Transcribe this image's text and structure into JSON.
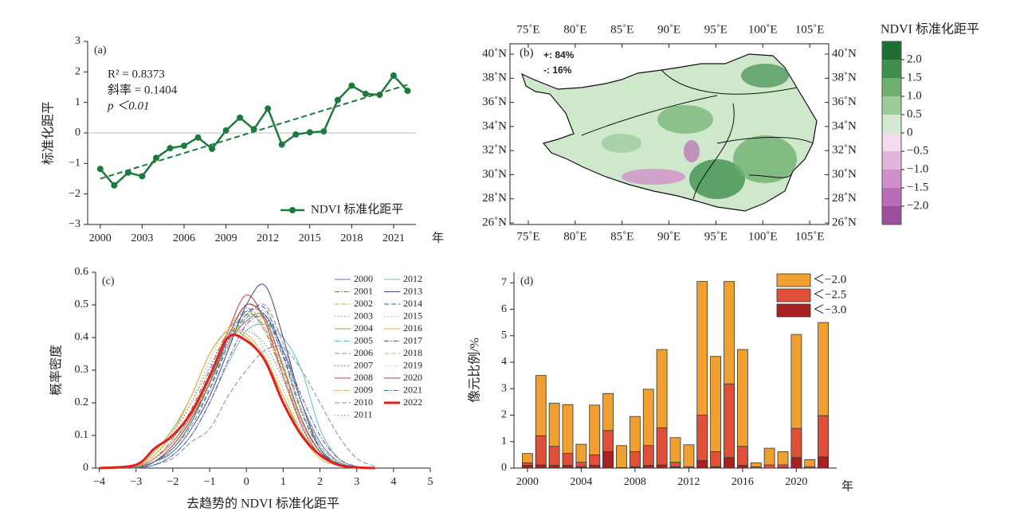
{
  "chart_data": [
    {
      "type": "line",
      "label": "(a)",
      "x": [
        2000,
        2001,
        2002,
        2003,
        2004,
        2005,
        2006,
        2007,
        2008,
        2009,
        2010,
        2011,
        2012,
        2013,
        2014,
        2015,
        2016,
        2017,
        2018,
        2019,
        2020,
        2021,
        2022
      ],
      "series": [
        {
          "name": "NDVI 标准化距平",
          "color": "#1e7a3c",
          "values": [
            -1.18,
            -1.72,
            -1.3,
            -1.42,
            -0.82,
            -0.5,
            -0.42,
            -0.15,
            -0.52,
            0.08,
            0.5,
            0.12,
            0.8,
            -0.38,
            -0.05,
            0.02,
            0.05,
            1.08,
            1.55,
            1.28,
            1.25,
            1.88,
            1.38
          ]
        }
      ],
      "trend": {
        "x": [
          2000,
          2022
        ],
        "values": [
          -1.5,
          1.58
        ]
      },
      "annotations": [
        "R² = 0.8373",
        "斜率 = 0.1404",
        "p ＜0.01"
      ],
      "xlim": [
        1999.1,
        2022.6
      ],
      "xticks": [
        2000,
        2003,
        2006,
        2009,
        2012,
        2015,
        2018,
        2021
      ],
      "ylim": [
        -3,
        3
      ],
      "yticks": [
        {
          "value": -3,
          "label": "−3"
        },
        {
          "value": -2,
          "label": "−2"
        },
        {
          "value": -1,
          "label": "−1"
        },
        0,
        1,
        2,
        3
      ],
      "xlabel": "年",
      "ylabel": "标准化距平",
      "legend": "lower right"
    },
    {
      "type": "map",
      "label": "(b)",
      "lonlim": [
        73.05,
        107.03
      ],
      "latlim": [
        25.87,
        40.86
      ],
      "lonticks": [
        {
          "value": 75,
          "label": "75˚E"
        },
        {
          "value": 80,
          "label": "80˚E"
        },
        {
          "value": 85,
          "label": "85˚E"
        },
        {
          "value": 90,
          "label": "90˚E"
        },
        {
          "value": 95,
          "label": "95˚E"
        },
        {
          "value": 100,
          "label": "100˚E"
        },
        {
          "value": 105,
          "label": "105˚E"
        }
      ],
      "latticks": [
        {
          "value": 40,
          "label": "40˚N"
        },
        {
          "value": 38,
          "label": "38˚N"
        },
        {
          "value": 36,
          "label": "36˚N"
        },
        {
          "value": 34,
          "label": "34˚N"
        },
        {
          "value": 32,
          "label": "32˚N"
        },
        {
          "value": 30,
          "label": "30˚N"
        },
        {
          "value": 28,
          "label": "28˚N"
        },
        {
          "value": 26,
          "label": "26˚N"
        }
      ],
      "annotations": [
        {
          "text": "+: 84%",
          "color": "#1f6e35"
        },
        {
          "text": "-: 16%",
          "color": "#b050b0"
        }
      ],
      "colorbar": {
        "title": "NDVI 标准化距平",
        "lim": [
          -2.5,
          2.5
        ],
        "colors": [
          "#1f6e35",
          "#3f8f4f",
          "#6fb071",
          "#9fcb9d",
          "#d3ead0",
          "#f2dcee",
          "#e2b6dc",
          "#cf90c9",
          "#b86db6",
          "#9c4f9c"
        ],
        "ticks": [
          {
            "value": 2,
            "label": "2.0"
          },
          {
            "value": 1.5,
            "label": "1.5"
          },
          {
            "value": 1,
            "label": "1.0"
          },
          {
            "value": 0.5,
            "label": "0.5"
          },
          0,
          {
            "value": -0.5,
            "label": "−0.5"
          },
          {
            "value": -1,
            "label": "−1.0"
          },
          {
            "value": -1.5,
            "label": "−1.5"
          },
          {
            "value": -2,
            "label": "−2.0"
          }
        ]
      }
    },
    {
      "type": "density",
      "label": "(c)",
      "x": [
        -4,
        -3,
        -2.5,
        -2,
        -1.5,
        -1,
        -0.5,
        0,
        0.5,
        1,
        1.5,
        2,
        2.5,
        3,
        3.5
      ],
      "series": [
        {
          "name": "2000",
          "color": "#4a7fc1",
          "style": "solid",
          "values": [
            0,
            0.002,
            0.02,
            0.06,
            0.14,
            0.26,
            0.38,
            0.45,
            0.47,
            0.36,
            0.2,
            0.08,
            0.02,
            0.004,
            0
          ]
        },
        {
          "name": "2001",
          "color": "#8a6d3b",
          "style": "dashdot",
          "values": [
            0,
            0.003,
            0.03,
            0.09,
            0.18,
            0.3,
            0.42,
            0.48,
            0.42,
            0.28,
            0.14,
            0.05,
            0.015,
            0.003,
            0
          ]
        },
        {
          "name": "2002",
          "color": "#e0a040",
          "style": "dashed",
          "values": [
            0,
            0.002,
            0.02,
            0.07,
            0.15,
            0.27,
            0.4,
            0.5,
            0.45,
            0.3,
            0.15,
            0.05,
            0.01,
            0.002,
            0
          ]
        },
        {
          "name": "2003",
          "color": "#c8a040",
          "style": "dotted",
          "values": [
            0,
            0.004,
            0.04,
            0.1,
            0.2,
            0.33,
            0.43,
            0.44,
            0.36,
            0.24,
            0.12,
            0.04,
            0.01,
            0.002,
            0
          ]
        },
        {
          "name": "2004",
          "color": "#8fae3a",
          "style": "solid",
          "values": [
            0,
            0.005,
            0.05,
            0.12,
            0.22,
            0.35,
            0.42,
            0.4,
            0.33,
            0.22,
            0.11,
            0.04,
            0.01,
            0.002,
            0
          ]
        },
        {
          "name": "2005",
          "color": "#40b0c0",
          "style": "dashdot",
          "values": [
            0,
            0.003,
            0.03,
            0.08,
            0.17,
            0.29,
            0.41,
            0.47,
            0.43,
            0.29,
            0.14,
            0.05,
            0.01,
            0.002,
            0
          ]
        },
        {
          "name": "2006",
          "color": "#d07070",
          "style": "dashed",
          "values": [
            0,
            0.002,
            0.02,
            0.06,
            0.13,
            0.24,
            0.37,
            0.46,
            0.5,
            0.38,
            0.2,
            0.07,
            0.02,
            0.003,
            0
          ]
        },
        {
          "name": "2007",
          "color": "#7070d0",
          "style": "dotted",
          "values": [
            0,
            0.004,
            0.04,
            0.11,
            0.2,
            0.31,
            0.41,
            0.42,
            0.38,
            0.27,
            0.14,
            0.05,
            0.01,
            0.002,
            0
          ]
        },
        {
          "name": "2008",
          "color": "#c04040",
          "style": "solid",
          "values": [
            0,
            0.003,
            0.03,
            0.08,
            0.16,
            0.28,
            0.42,
            0.53,
            0.45,
            0.28,
            0.13,
            0.04,
            0.01,
            0.002,
            0
          ]
        },
        {
          "name": "2009",
          "color": "#e0b060",
          "style": "dashdot",
          "values": [
            0,
            0.002,
            0.02,
            0.07,
            0.15,
            0.28,
            0.42,
            0.49,
            0.43,
            0.28,
            0.14,
            0.05,
            0.01,
            0.002,
            0
          ]
        },
        {
          "name": "2010",
          "color": "#7090b0",
          "style": "dashed",
          "values": [
            0,
            0,
            0.01,
            0.03,
            0.08,
            0.12,
            0.22,
            0.3,
            0.36,
            0.37,
            0.3,
            0.2,
            0.1,
            0.03,
            0.005
          ]
        },
        {
          "name": "2011",
          "color": "#c0a030",
          "style": "dotted",
          "values": [
            0,
            0.002,
            0.02,
            0.07,
            0.15,
            0.27,
            0.39,
            0.46,
            0.45,
            0.32,
            0.17,
            0.06,
            0.015,
            0.003,
            0
          ]
        },
        {
          "name": "2012",
          "color": "#60c0c0",
          "style": "solid",
          "values": [
            0,
            0.001,
            0.01,
            0.04,
            0.1,
            0.2,
            0.32,
            0.42,
            0.44,
            0.4,
            0.3,
            0.12,
            0.03,
            0.005,
            0
          ]
        },
        {
          "name": "2013",
          "color": "#404080",
          "style": "solid",
          "values": [
            0,
            0.002,
            0.02,
            0.05,
            0.12,
            0.22,
            0.36,
            0.5,
            0.56,
            0.4,
            0.2,
            0.06,
            0.01,
            0.002,
            0
          ]
        },
        {
          "name": "2014",
          "color": "#3060b0",
          "style": "dashed",
          "values": [
            0,
            0.002,
            0.02,
            0.06,
            0.13,
            0.24,
            0.38,
            0.47,
            0.49,
            0.35,
            0.18,
            0.06,
            0.015,
            0.002,
            0
          ]
        },
        {
          "name": "2015",
          "color": "#80c0e0",
          "style": "dotted",
          "values": [
            0,
            0.001,
            0.015,
            0.05,
            0.12,
            0.23,
            0.37,
            0.47,
            0.48,
            0.38,
            0.2,
            0.07,
            0.02,
            0.003,
            0
          ]
        },
        {
          "name": "2016",
          "color": "#e0b040",
          "style": "solid",
          "values": [
            0,
            0.004,
            0.04,
            0.11,
            0.22,
            0.35,
            0.42,
            0.41,
            0.34,
            0.22,
            0.1,
            0.03,
            0.008,
            0.001,
            0
          ]
        },
        {
          "name": "2017",
          "color": "#7040a0",
          "style": "dashdot",
          "values": [
            0,
            0.001,
            0.01,
            0.04,
            0.1,
            0.2,
            0.33,
            0.44,
            0.46,
            0.36,
            0.22,
            0.1,
            0.03,
            0.005,
            0
          ]
        },
        {
          "name": "2018",
          "color": "#b0c060",
          "style": "dashed",
          "values": [
            0,
            0.002,
            0.02,
            0.06,
            0.13,
            0.25,
            0.38,
            0.46,
            0.46,
            0.34,
            0.18,
            0.06,
            0.015,
            0.002,
            0
          ]
        },
        {
          "name": "2019",
          "color": "#d0c080",
          "style": "dotted",
          "values": [
            0,
            0.003,
            0.03,
            0.08,
            0.16,
            0.28,
            0.4,
            0.45,
            0.42,
            0.3,
            0.15,
            0.05,
            0.01,
            0.002,
            0
          ]
        },
        {
          "name": "2020",
          "color": "#a04040",
          "style": "solid",
          "values": [
            0,
            0.002,
            0.02,
            0.07,
            0.15,
            0.26,
            0.4,
            0.5,
            0.46,
            0.31,
            0.15,
            0.05,
            0.01,
            0.002,
            0
          ]
        },
        {
          "name": "2021",
          "color": "#3070a0",
          "style": "dashdot",
          "values": [
            0,
            0.002,
            0.02,
            0.06,
            0.14,
            0.26,
            0.39,
            0.48,
            0.47,
            0.34,
            0.17,
            0.06,
            0.015,
            0.002,
            0
          ]
        },
        {
          "name": "2022",
          "color": "#e02020",
          "style": "bold",
          "values": [
            0,
            0.01,
            0.06,
            0.1,
            0.17,
            0.28,
            0.4,
            0.39,
            0.33,
            0.2,
            0.1,
            0.04,
            0.01,
            0.002,
            0
          ]
        }
      ],
      "xlim": [
        -4.1,
        5
      ],
      "xticks": [
        {
          "value": -4,
          "label": "−4"
        },
        {
          "value": -3,
          "label": "−3"
        },
        {
          "value": -2,
          "label": "−2"
        },
        {
          "value": -1,
          "label": "−1"
        },
        0,
        1,
        2,
        3,
        4,
        5
      ],
      "ylim": [
        0,
        0.6
      ],
      "yticks": [
        0,
        0.1,
        0.2,
        0.3,
        0.4,
        0.5,
        0.6
      ],
      "xlabel": "去趋势的 NDVI 标准化距平",
      "ylabel": "概率密度",
      "legend": "upper right"
    },
    {
      "type": "bar",
      "label": "(d)",
      "x": [
        2000,
        2001,
        2002,
        2003,
        2004,
        2005,
        2006,
        2007,
        2008,
        2009,
        2010,
        2011,
        2012,
        2013,
        2014,
        2015,
        2016,
        2017,
        2018,
        2019,
        2020,
        2021,
        2022
      ],
      "series": [
        {
          "name": "＜−2.0",
          "color": "#f0a030",
          "values": [
            0.55,
            3.5,
            2.45,
            2.4,
            0.9,
            2.38,
            2.82,
            0.85,
            1.95,
            2.98,
            4.48,
            1.15,
            0.88,
            7.05,
            4.22,
            7.05,
            4.48,
            0.2,
            0.75,
            0.62,
            5.05,
            0.32,
            5.5
          ]
        },
        {
          "name": "＜−2.5",
          "color": "#e05038",
          "values": [
            0.2,
            1.22,
            0.82,
            0.55,
            0.22,
            0.5,
            1.42,
            0.02,
            0.62,
            0.85,
            1.52,
            0.22,
            0.05,
            2.0,
            0.62,
            3.18,
            0.82,
            0.05,
            0.12,
            0.12,
            1.5,
            0.05,
            1.98
          ]
        },
        {
          "name": "＜−3.0",
          "color": "#a82020",
          "values": [
            0.1,
            0.12,
            0.1,
            0.1,
            0.05,
            0.1,
            0.62,
            0,
            0.05,
            0.1,
            0.12,
            0.05,
            0,
            0.28,
            0.05,
            0.4,
            0.1,
            0,
            0,
            0.02,
            0.4,
            0,
            0.42
          ]
        }
      ],
      "xlim": [
        1999,
        2023
      ],
      "xticks": [
        2000,
        2004,
        2008,
        2012,
        2016,
        2020
      ],
      "ylim": [
        0,
        7.4
      ],
      "yticks": [
        0,
        1,
        2,
        3,
        4,
        5,
        6,
        7
      ],
      "xlabel": "年",
      "ylabel": "像元比例/%",
      "legend": "upper right"
    }
  ]
}
